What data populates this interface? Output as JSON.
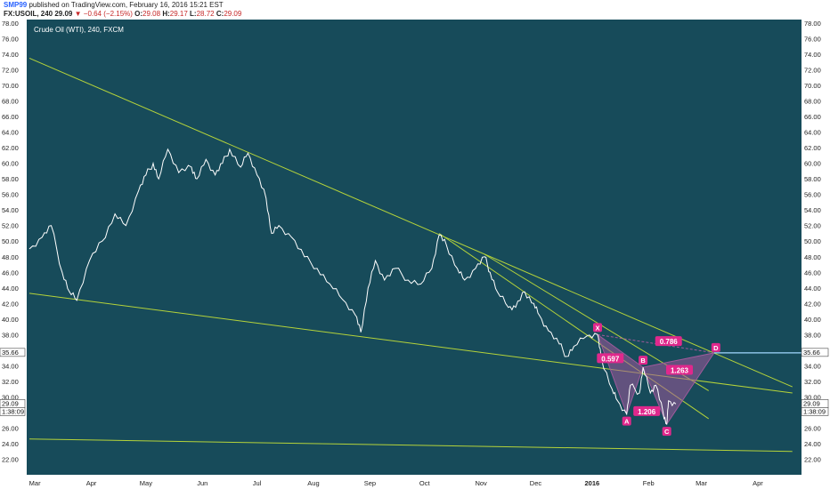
{
  "header": {
    "user": "SMP99",
    "published": "published on TradingView.com, February 16, 2016 15:21 EST",
    "symbol": "FX:USOIL, 240",
    "last": "29.09",
    "change": "▼ −0.64 (−2.15%)",
    "o_label": "O:",
    "o_val": "29.08",
    "h_label": "H:",
    "h_val": "29.17",
    "l_label": "L:",
    "l_val": "28.72",
    "c_label": "C:",
    "c_val": "29.09"
  },
  "chart_data": {
    "type": "line",
    "title": "Crude Oil (WTI), 240, FXCM",
    "xlabel": "",
    "ylabel": "",
    "ylim": [
      20,
      78
    ],
    "grid": false,
    "background": "#174b5a",
    "line_color": "#ffffff",
    "trendline_color": "#b5d33a",
    "pattern_color": "#a05a9c",
    "label_color": "#e0288c",
    "y_ticks": [
      "22.00",
      "24.00",
      "26.00",
      "28.00",
      "30.00",
      "32.00",
      "34.00",
      "36.00",
      "38.00",
      "40.00",
      "42.00",
      "44.00",
      "46.00",
      "48.00",
      "50.00",
      "52.00",
      "54.00",
      "56.00",
      "58.00",
      "60.00",
      "62.00",
      "64.00",
      "66.00",
      "68.00",
      "70.00",
      "72.00",
      "74.00",
      "76.00",
      "78.00"
    ],
    "x_ticks": [
      "Mar",
      "Apr",
      "May",
      "Jun",
      "Jul",
      "Aug",
      "Sep",
      "Oct",
      "Nov",
      "Dec",
      "2016",
      "Feb",
      "Mar",
      "Apr"
    ],
    "price_labels": {
      "level_d": "35.66",
      "last": "29.09",
      "countdown": "1:38:09"
    },
    "series": [
      {
        "values": [
          [
            "2015-02-26",
            49.0
          ],
          [
            "2015-03-05",
            50.5
          ],
          [
            "2015-03-10",
            52.0
          ],
          [
            "2015-03-16",
            46.0
          ],
          [
            "2015-03-20",
            43.5
          ],
          [
            "2015-03-24",
            42.4
          ],
          [
            "2015-03-31",
            47.5
          ],
          [
            "2015-04-07",
            50.0
          ],
          [
            "2015-04-14",
            53.5
          ],
          [
            "2015-04-20",
            52.0
          ],
          [
            "2015-04-27",
            56.5
          ],
          [
            "2015-05-01",
            58.5
          ],
          [
            "2015-05-05",
            60.0
          ],
          [
            "2015-05-08",
            58.0
          ],
          [
            "2015-05-13",
            61.8
          ],
          [
            "2015-05-19",
            58.8
          ],
          [
            "2015-05-26",
            59.5
          ],
          [
            "2015-05-29",
            58.0
          ],
          [
            "2015-06-03",
            60.5
          ],
          [
            "2015-06-08",
            58.5
          ],
          [
            "2015-06-12",
            60.0
          ],
          [
            "2015-06-16",
            61.8
          ],
          [
            "2015-06-22",
            59.5
          ],
          [
            "2015-06-26",
            61.3
          ],
          [
            "2015-07-01",
            58.5
          ],
          [
            "2015-07-06",
            55.5
          ],
          [
            "2015-07-09",
            51.0
          ],
          [
            "2015-07-13",
            52.0
          ],
          [
            "2015-07-20",
            50.5
          ],
          [
            "2015-07-27",
            48.0
          ],
          [
            "2015-08-03",
            46.5
          ],
          [
            "2015-08-10",
            44.5
          ],
          [
            "2015-08-17",
            42.5
          ],
          [
            "2015-08-24",
            40.5
          ],
          [
            "2015-08-27",
            38.3
          ],
          [
            "2015-08-31",
            44.0
          ],
          [
            "2015-09-04",
            47.5
          ],
          [
            "2015-09-09",
            45.0
          ],
          [
            "2015-09-15",
            46.5
          ],
          [
            "2015-09-22",
            45.0
          ],
          [
            "2015-09-29",
            44.5
          ],
          [
            "2015-10-05",
            46.5
          ],
          [
            "2015-10-09",
            50.8
          ],
          [
            "2015-10-13",
            49.5
          ],
          [
            "2015-10-19",
            46.5
          ],
          [
            "2015-10-23",
            45.0
          ],
          [
            "2015-10-29",
            46.5
          ],
          [
            "2015-11-03",
            48.0
          ],
          [
            "2015-11-06",
            46.0
          ],
          [
            "2015-11-10",
            43.5
          ],
          [
            "2015-11-16",
            41.5
          ],
          [
            "2015-11-20",
            41.5
          ],
          [
            "2015-11-25",
            43.5
          ],
          [
            "2015-11-30",
            42.0
          ],
          [
            "2015-12-03",
            40.5
          ],
          [
            "2015-12-08",
            38.5
          ],
          [
            "2015-12-14",
            36.8
          ],
          [
            "2015-12-18",
            35.2
          ],
          [
            "2015-12-22",
            36.5
          ],
          [
            "2015-12-29",
            37.8
          ],
          [
            "2016-01-04",
            38.0
          ],
          [
            "2016-01-06",
            35.0
          ],
          [
            "2016-01-12",
            31.0
          ],
          [
            "2016-01-15",
            29.5
          ],
          [
            "2016-01-20",
            27.8
          ],
          [
            "2016-01-22",
            31.5
          ],
          [
            "2016-01-27",
            30.5
          ],
          [
            "2016-01-29",
            33.8
          ],
          [
            "2016-02-02",
            30.5
          ],
          [
            "2016-02-05",
            31.5
          ],
          [
            "2016-02-09",
            28.0
          ],
          [
            "2016-02-11",
            26.5
          ],
          [
            "2016-02-12",
            29.5
          ],
          [
            "2016-02-16",
            29.09
          ]
        ]
      }
    ],
    "trendlines": [
      {
        "from": [
          "2015-02-26",
          73.5
        ],
        "to": [
          "2016-04-20",
          31.3
        ]
      },
      {
        "from": [
          "2015-02-26",
          43.3
        ],
        "to": [
          "2016-04-20",
          30.5
        ]
      },
      {
        "from": [
          "2015-02-26",
          24.6
        ],
        "to": [
          "2016-04-20",
          23.0
        ]
      },
      {
        "from": [
          "2015-10-09",
          51.0
        ],
        "to": [
          "2016-03-05",
          27.2
        ]
      },
      {
        "from": [
          "2015-11-03",
          48.3
        ],
        "to": [
          "2016-03-05",
          30.8
        ]
      }
    ],
    "pattern": {
      "points": [
        {
          "label": "X",
          "x": "2016-01-04",
          "y": 38.0
        },
        {
          "label": "A",
          "x": "2016-01-20",
          "y": 27.8
        },
        {
          "label": "B",
          "x": "2016-01-29",
          "y": 33.8
        },
        {
          "label": "C",
          "x": "2016-02-11",
          "y": 26.5
        },
        {
          "label": "D",
          "x": "2016-03-08",
          "y": 35.66
        }
      ],
      "ratios": [
        {
          "value": "0.597",
          "x": "2016-01-11",
          "y": 34.8
        },
        {
          "value": "0.786",
          "x": "2016-02-12",
          "y": 37.0
        },
        {
          "value": "1.263",
          "x": "2016-02-18",
          "y": 33.3
        },
        {
          "value": "1.206",
          "x": "2016-01-31",
          "y": 28.0
        }
      ]
    },
    "level_line": {
      "value": 35.66,
      "from": "2016-03-08"
    }
  }
}
